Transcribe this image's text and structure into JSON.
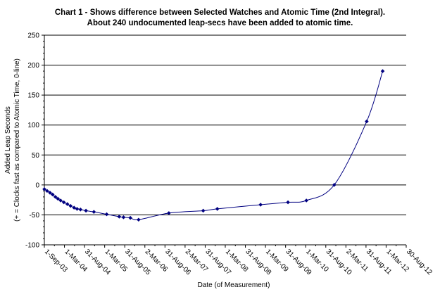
{
  "chart_data": {
    "type": "line",
    "title": "Chart 1 - Shows difference between Selected Watches and Atomic Time (2nd Integral).",
    "subtitle": "About 240 undocumented leap-secs have been added to atomic time.",
    "xlabel": "Date (of Measurement)",
    "ylabel_line1": "Added Leap Seconds",
    "ylabel_line2": "(+ = Clocks fast as compared to Atomic Time, 0-line)",
    "ylim": [
      -100,
      250
    ],
    "yticks": [
      -100,
      -50,
      0,
      50,
      100,
      150,
      200,
      250
    ],
    "x_tick_labels": [
      "1-Sep-03",
      "1-Mar-04",
      "31-Aug-04",
      "1-Mar-05",
      "31-Aug-05",
      "2-Mar-06",
      "31-Aug-06",
      "2-Mar-07",
      "31-Aug-07",
      "1-Mar-08",
      "31-Aug-08",
      "1-Mar-09",
      "31-Aug-09",
      "1-Mar-10",
      "31-Aug-10",
      "2-Mar-11",
      "31-Aug-11",
      "1-Mar-12",
      "30-Aug-12"
    ],
    "grid": "horizontal",
    "legend": "none",
    "colors": {
      "series": "#000080",
      "grid": "#000000"
    },
    "series": [
      {
        "marker": "diamond",
        "points": [
          {
            "x": "2003-09-01",
            "y": -7
          },
          {
            "x": "2003-09-26",
            "y": -10
          },
          {
            "x": "2003-10-22",
            "y": -13
          },
          {
            "x": "2003-11-15",
            "y": -16
          },
          {
            "x": "2003-12-10",
            "y": -20
          },
          {
            "x": "2004-01-02",
            "y": -23
          },
          {
            "x": "2004-01-27",
            "y": -26
          },
          {
            "x": "2004-02-25",
            "y": -29
          },
          {
            "x": "2004-03-28",
            "y": -32
          },
          {
            "x": "2004-04-26",
            "y": -35
          },
          {
            "x": "2004-05-28",
            "y": -38
          },
          {
            "x": "2004-06-24",
            "y": -40
          },
          {
            "x": "2004-07-25",
            "y": -41
          },
          {
            "x": "2004-09-13",
            "y": -43
          },
          {
            "x": "2004-11-24",
            "y": -45
          },
          {
            "x": "2005-03-20",
            "y": -49
          },
          {
            "x": "2005-07-12",
            "y": -53
          },
          {
            "x": "2005-08-20",
            "y": -54
          },
          {
            "x": "2005-10-21",
            "y": -55
          },
          {
            "x": "2006-01-04",
            "y": -58
          },
          {
            "x": "2006-10-06",
            "y": -47
          },
          {
            "x": "2007-08-14",
            "y": -43
          },
          {
            "x": "2007-12-20",
            "y": -40
          },
          {
            "x": "2009-01-16",
            "y": -33
          },
          {
            "x": "2009-09-22",
            "y": -29
          },
          {
            "x": "2010-03-08",
            "y": -26
          },
          {
            "x": "2010-11-16",
            "y": 0
          },
          {
            "x": "2011-09-07",
            "y": 106
          },
          {
            "x": "2012-01-30",
            "y": 190
          }
        ]
      }
    ]
  }
}
